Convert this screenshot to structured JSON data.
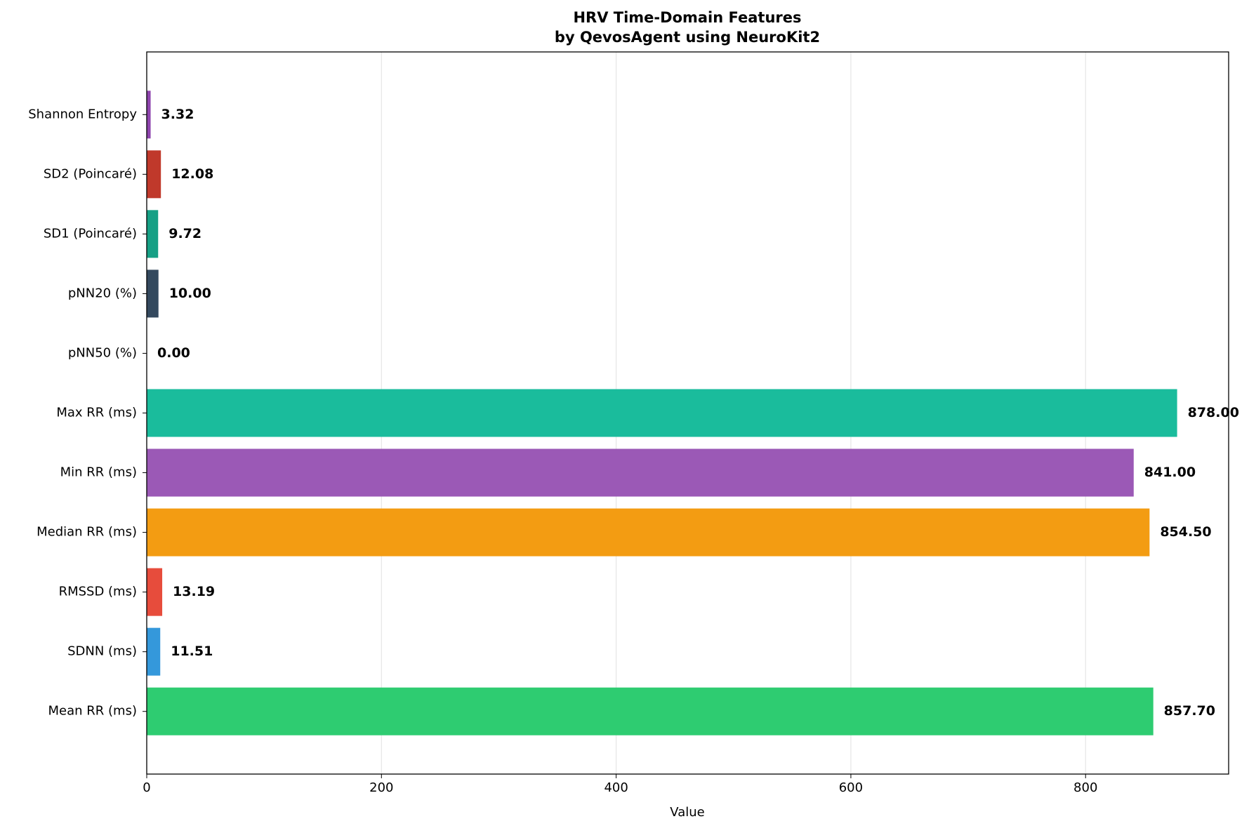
{
  "chart_data": {
    "type": "barh",
    "title": "HRV Time-Domain Features",
    "subtitle": "by QevosAgent using NeuroKit2",
    "x_label": "Value",
    "categories": [
      "Mean RR (ms)",
      "SDNN (ms)",
      "RMSSD (ms)",
      "Median RR (ms)",
      "Min RR (ms)",
      "Max RR (ms)",
      "pNN50 (%)",
      "pNN20 (%)",
      "SD1 (Poincaré)",
      "SD2 (Poincaré)",
      "Shannon Entropy"
    ],
    "values": [
      857.7,
      11.51,
      13.19,
      854.5,
      841,
      878,
      0,
      10,
      9.72,
      12.08,
      3.32
    ],
    "value_labels": [
      "857.70",
      "11.51",
      "13.19",
      "854.50",
      "841.00",
      "878.00",
      "0.00",
      "10.00",
      "9.72",
      "12.08",
      "3.32"
    ],
    "colors": [
      "#2ecc71",
      "#3498db",
      "#e74c3c",
      "#f39c12",
      "#9b59b6",
      "#1abc9c",
      "#95a5a6",
      "#34495e",
      "#16a085",
      "#c0392b",
      "#8e44ad"
    ],
    "xlim": [
      0,
      921.9
    ],
    "xticks": [
      0,
      200,
      400,
      600,
      800
    ],
    "grid": true
  }
}
